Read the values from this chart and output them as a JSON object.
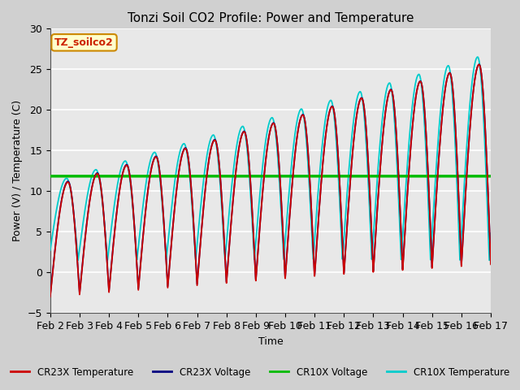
{
  "title": "Tonzi Soil CO2 Profile: Power and Temperature",
  "xlabel": "Time",
  "ylabel": "Power (V) / Temperature (C)",
  "ylim": [
    -5,
    30
  ],
  "xlim": [
    0,
    15
  ],
  "fig_bg_color": "#d0d0d0",
  "plot_bg_color": "#e8e8e8",
  "grid_color": "#ffffff",
  "annotation_text": "TZ_soilco2",
  "annotation_bg": "#ffffcc",
  "annotation_border": "#cc8800",
  "cr23x_temp_color": "#cc0000",
  "cr23x_volt_color": "#000080",
  "cr10x_volt_color": "#00bb00",
  "cr10x_temp_color": "#00cccc",
  "cr10x_volt_value": 11.85,
  "xtick_labels": [
    "Feb 2",
    "Feb 3",
    "Feb 4",
    "Feb 5",
    "Feb 6",
    "Feb 7",
    "Feb 8",
    "Feb 9",
    "Feb 10",
    "Feb 11",
    "Feb 12",
    "Feb 13",
    "Feb 14",
    "Feb 15",
    "Feb 16",
    "Feb 17"
  ],
  "legend_labels": [
    "CR23X Temperature",
    "CR23X Voltage",
    "CR10X Voltage",
    "CR10X Temperature"
  ]
}
